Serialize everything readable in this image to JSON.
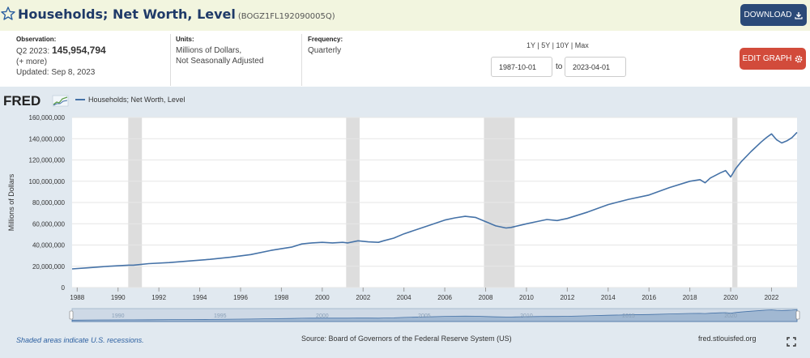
{
  "header": {
    "title": "Households; Net Worth, Level",
    "series_id": "(BOGZ1FL192090005Q)",
    "download_label": "DOWNLOAD",
    "icons": {
      "favorite": "star-icon",
      "download": "download-icon"
    }
  },
  "meta": {
    "observation_label": "Observation:",
    "observation_period": "Q2 2023:",
    "observation_value": "145,954,794",
    "more": "(+ more)",
    "updated": "Updated: Sep 8, 2023",
    "units_label": "Units:",
    "units_line1": "Millions of Dollars,",
    "units_line2": "Not Seasonally Adjusted",
    "frequency_label": "Frequency:",
    "frequency": "Quarterly"
  },
  "controls": {
    "range_1y": "1Y",
    "range_5y": "5Y",
    "range_10y": "10Y",
    "range_max": "Max",
    "separator": "|",
    "start_date": "1987-10-01",
    "to_label": "to",
    "end_date": "2023-04-01",
    "edit_label": "EDIT GRAPH",
    "icons": {
      "edit": "gear-icon",
      "fullscreen": "fullscreen-icon"
    }
  },
  "logo_text": "FRED",
  "footer": {
    "recession_note": "Shaded areas indicate U.S. recessions.",
    "source": "Source: Board of Governors of the Federal Reserve System (US)",
    "site": "fred.stlouisfed.org"
  },
  "colors": {
    "line": "#4572a7",
    "recession": "#dddddd",
    "chart_bg": "#e1e9f0",
    "plot_bg": "#ffffff",
    "title": "#1f3a68",
    "download_button": "#2b4a78",
    "edit_button": "#d24b3b"
  },
  "chart_data": {
    "type": "line",
    "title": "",
    "xlabel": "",
    "ylabel": "Millions of Dollars",
    "xlim": [
      1987.75,
      2023.25
    ],
    "ylim": [
      0,
      160000000
    ],
    "y_ticks": [
      0,
      20000000,
      40000000,
      60000000,
      80000000,
      100000000,
      120000000,
      140000000,
      160000000
    ],
    "y_tick_labels": [
      "0",
      "20,000,000",
      "40,000,000",
      "60,000,000",
      "80,000,000",
      "100,000,000",
      "120,000,000",
      "140,000,000",
      "160,000,000"
    ],
    "x_ticks": [
      1988,
      1990,
      1992,
      1994,
      1996,
      1998,
      2000,
      2002,
      2004,
      2006,
      2008,
      2010,
      2012,
      2014,
      2016,
      2018,
      2020,
      2022
    ],
    "x_tick_labels": [
      "1988",
      "1990",
      "1992",
      "1994",
      "1996",
      "1998",
      "2000",
      "2002",
      "2004",
      "2006",
      "2008",
      "2010",
      "2012",
      "2014",
      "2016",
      "2018",
      "2020",
      "2022"
    ],
    "grid": "horizontal",
    "legend": "top-left",
    "recessions": [
      [
        1990.5,
        1991.17
      ],
      [
        2001.17,
        2001.83
      ],
      [
        2007.92,
        2009.42
      ],
      [
        2020.08,
        2020.33
      ]
    ],
    "series": [
      {
        "name": "Households; Net Worth, Level",
        "x": [
          1987.75,
          1988.5,
          1989.5,
          1990.5,
          1990.75,
          1991.5,
          1992.5,
          1993.5,
          1994.5,
          1995.5,
          1996.5,
          1997.5,
          1998.5,
          1999.0,
          1999.5,
          2000.0,
          2000.5,
          2001.0,
          2001.25,
          2001.75,
          2002.25,
          2002.75,
          2003.0,
          2003.5,
          2004.0,
          2005.0,
          2006.0,
          2006.5,
          2007.0,
          2007.5,
          2008.0,
          2008.5,
          2009.0,
          2009.25,
          2010.0,
          2010.5,
          2011.0,
          2011.5,
          2012.0,
          2013.0,
          2014.0,
          2015.0,
          2016.0,
          2017.0,
          2018.0,
          2018.5,
          2018.75,
          2019.0,
          2019.5,
          2019.75,
          2020.0,
          2020.25,
          2020.5,
          2021.0,
          2021.5,
          2021.75,
          2022.0,
          2022.25,
          2022.5,
          2022.75,
          2023.0,
          2023.25
        ],
        "y": [
          17500000,
          18500000,
          20000000,
          21000000,
          21000000,
          22500000,
          23500000,
          25000000,
          26500000,
          28500000,
          31000000,
          35000000,
          38000000,
          41000000,
          42000000,
          42500000,
          42000000,
          42500000,
          42000000,
          44000000,
          43000000,
          42500000,
          44000000,
          46500000,
          50500000,
          57000000,
          63500000,
          65500000,
          67000000,
          66000000,
          62000000,
          58000000,
          56000000,
          56500000,
          60000000,
          62000000,
          64000000,
          63000000,
          65000000,
          71000000,
          78000000,
          83000000,
          87000000,
          94000000,
          100000000,
          101500000,
          98500000,
          103000000,
          108000000,
          110000000,
          104000000,
          112000000,
          118000000,
          128000000,
          137000000,
          141000000,
          144500000,
          139000000,
          136000000,
          138000000,
          141000000,
          145954794
        ]
      }
    ]
  }
}
